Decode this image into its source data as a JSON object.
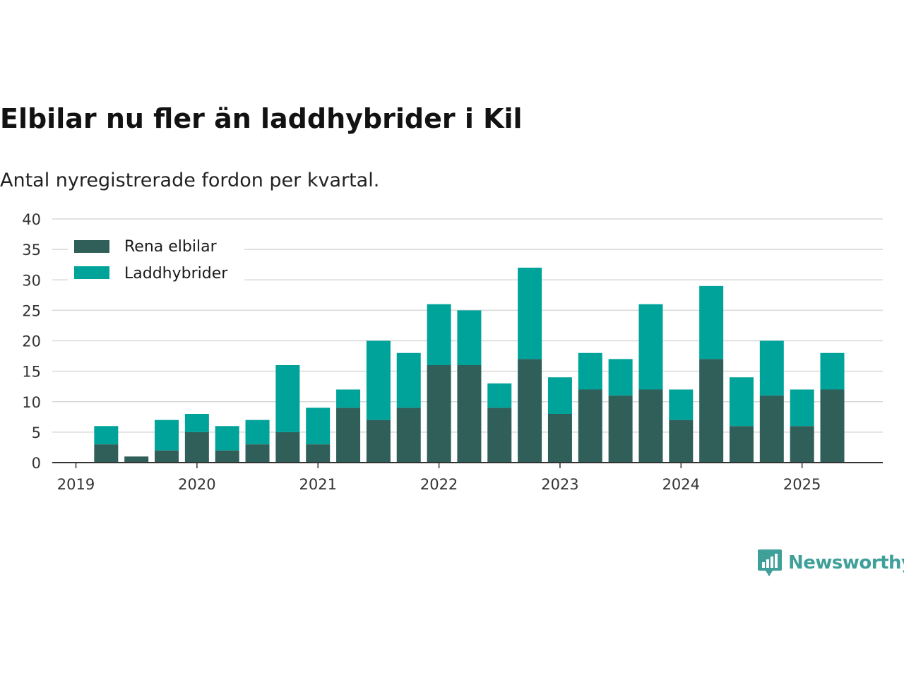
{
  "header": {
    "title": "Elbilar nu fler än laddhybrider i Kil",
    "subtitle": "Antal nyregistrerade fordon per kvartal."
  },
  "brand": {
    "name": "Newsworthy",
    "icon": "bar-chart-speech-bubble-icon",
    "color": "#3fa09a"
  },
  "colors": {
    "rena_elbilar": "#2f5f58",
    "laddhybrider": "#00a39a",
    "grid": "#d9d9d9",
    "axis": "#333333"
  },
  "chart_data": {
    "type": "bar",
    "stacked": true,
    "title": "Elbilar nu fler än laddhybrider i Kil",
    "subtitle": "Antal nyregistrerade fordon per kvartal.",
    "xlabel": "",
    "ylabel": "",
    "ylim": [
      0,
      40
    ],
    "yticks": [
      0,
      5,
      10,
      15,
      20,
      25,
      30,
      35,
      40
    ],
    "xticks": [
      "2019",
      "2020",
      "2021",
      "2022",
      "2023",
      "2024",
      "2025"
    ],
    "categories": [
      "2019-Q1",
      "2019-Q2",
      "2019-Q3",
      "2019-Q4",
      "2020-Q1",
      "2020-Q2",
      "2020-Q3",
      "2020-Q4",
      "2021-Q1",
      "2021-Q2",
      "2021-Q3",
      "2021-Q4",
      "2022-Q1",
      "2022-Q2",
      "2022-Q3",
      "2022-Q4",
      "2023-Q1",
      "2023-Q2",
      "2023-Q3",
      "2023-Q4",
      "2024-Q1",
      "2024-Q2",
      "2024-Q3",
      "2024-Q4",
      "2025-Q1",
      "2025-Q2"
    ],
    "series": [
      {
        "name": "Rena elbilar",
        "color": "#2f5f58",
        "values": [
          3,
          1,
          2,
          5,
          2,
          3,
          5,
          3,
          9,
          7,
          9,
          16,
          16,
          9,
          17,
          8,
          12,
          11,
          12,
          7,
          17,
          6,
          11,
          6,
          12,
          null
        ]
      },
      {
        "name": "Laddhybrider",
        "color": "#00a39a",
        "values": [
          3,
          0,
          5,
          3,
          4,
          4,
          11,
          6,
          3,
          13,
          9,
          10,
          9,
          4,
          15,
          6,
          6,
          6,
          14,
          5,
          12,
          8,
          9,
          6,
          6,
          null
        ]
      }
    ],
    "grid": true,
    "legend": "top-left"
  }
}
